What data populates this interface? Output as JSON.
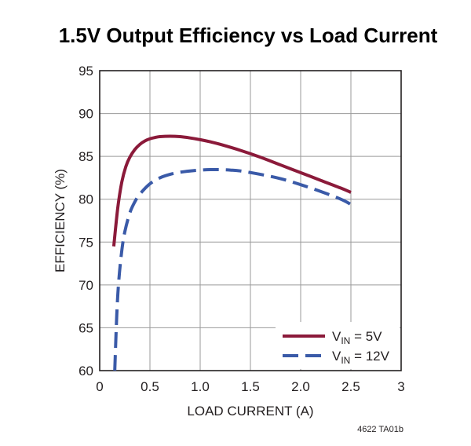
{
  "chart_data": {
    "type": "line",
    "title": "1.5V Output Efficiency vs Load Current",
    "xlabel": "LOAD CURRENT (A)",
    "ylabel": "EFFICIENCY (%)",
    "xlim": [
      0,
      3
    ],
    "ylim": [
      60,
      95
    ],
    "xticks": [
      0,
      0.5,
      1.0,
      1.5,
      2.0,
      2.5,
      3
    ],
    "xtick_labels": [
      "0",
      "0.5",
      "1.0",
      "1.5",
      "2.0",
      "2.5",
      "3"
    ],
    "yticks": [
      60,
      65,
      70,
      75,
      80,
      85,
      90,
      95
    ],
    "ytick_labels": [
      "60",
      "65",
      "70",
      "75",
      "80",
      "85",
      "90",
      "95"
    ],
    "grid": true,
    "legend_position": "bottom-right",
    "series": [
      {
        "name": "VIN = 5V",
        "legend_main": "V",
        "legend_sub": "IN",
        "legend_rest": " = 5V",
        "color": "#8b1a3a",
        "style": "solid",
        "x": [
          0.14,
          0.18,
          0.22,
          0.26,
          0.3,
          0.35,
          0.4,
          0.45,
          0.5,
          0.55,
          0.6,
          0.7,
          0.8,
          0.9,
          1.0,
          1.1,
          1.2,
          1.4,
          1.6,
          1.8,
          2.0,
          2.2,
          2.4,
          2.5
        ],
        "y": [
          74.5,
          79.0,
          82.0,
          83.8,
          84.9,
          85.8,
          86.4,
          86.8,
          87.05,
          87.2,
          87.3,
          87.35,
          87.3,
          87.15,
          86.95,
          86.7,
          86.4,
          85.7,
          84.9,
          84.0,
          83.1,
          82.2,
          81.3,
          80.8
        ]
      },
      {
        "name": "VIN = 12V",
        "legend_main": "V",
        "legend_sub": "IN",
        "legend_rest": " = 12V",
        "color": "#3a5aa8",
        "style": "dashed",
        "x": [
          0.15,
          0.17,
          0.19,
          0.22,
          0.25,
          0.3,
          0.35,
          0.4,
          0.5,
          0.6,
          0.7,
          0.8,
          0.9,
          1.0,
          1.1,
          1.2,
          1.3,
          1.4,
          1.6,
          1.8,
          2.0,
          2.2,
          2.4,
          2.5
        ],
        "y": [
          60.0,
          66.5,
          70.5,
          74.0,
          76.2,
          78.4,
          79.7,
          80.6,
          81.8,
          82.5,
          82.9,
          83.15,
          83.3,
          83.4,
          83.45,
          83.45,
          83.4,
          83.3,
          82.9,
          82.4,
          81.7,
          80.9,
          80.0,
          79.4
        ]
      }
    ]
  },
  "footnote": "4622 TA01b"
}
